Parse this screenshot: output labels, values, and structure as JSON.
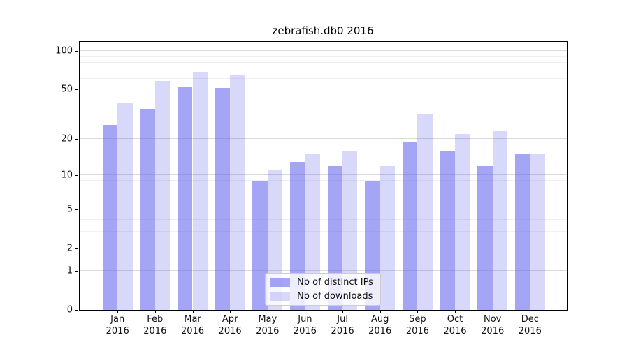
{
  "chart_data": {
    "type": "bar",
    "title": "zebrafish.db0 2016",
    "categories": [
      "Jan",
      "Feb",
      "Mar",
      "Apr",
      "May",
      "Jun",
      "Jul",
      "Aug",
      "Sep",
      "Oct",
      "Nov",
      "Dec"
    ],
    "year": "2016",
    "series": [
      {
        "name": "Nb of distinct IPs",
        "color": "rgba(100,100,240,0.58)",
        "values": [
          26,
          35,
          52,
          51,
          9,
          13,
          12,
          9,
          19,
          16,
          12,
          15
        ]
      },
      {
        "name": "Nb of downloads",
        "color": "rgba(100,100,240,0.25)",
        "values": [
          39,
          58,
          68,
          65,
          11,
          15,
          16,
          12,
          32,
          22,
          23,
          15
        ]
      }
    ],
    "yscale": "log(v+1)",
    "ylim": [
      0,
      117
    ],
    "yticks": [
      0,
      1,
      2,
      5,
      10,
      20,
      50,
      100
    ],
    "minor_gridlines": [
      3,
      4,
      6,
      7,
      8,
      9,
      30,
      40,
      60,
      70,
      80,
      90
    ],
    "grid": true,
    "legend_position": "lower center",
    "colors": {
      "bar_base": "#6464f0",
      "major_grid": "#d9d9d9",
      "minor_grid": "#f0f0f0",
      "axis": "#000000"
    }
  }
}
